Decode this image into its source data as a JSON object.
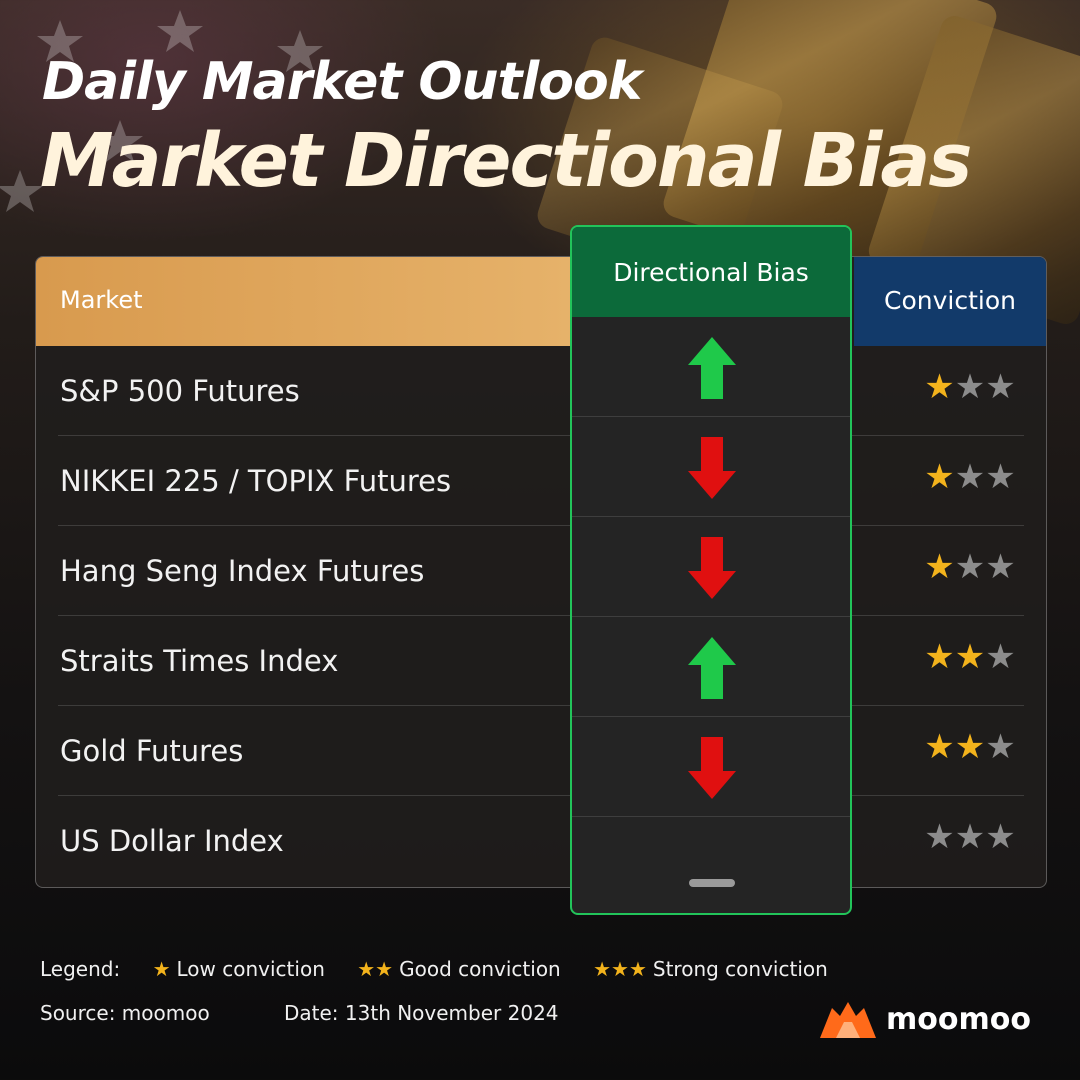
{
  "header": {
    "title_line1": "Daily Market Outlook",
    "title_line2": "Market Directional Bias"
  },
  "table": {
    "col_market": "Market",
    "col_bias": "Directional Bias",
    "col_conviction": "Conviction",
    "rows": [
      {
        "market": "S&P 500 Futures",
        "bias": "up",
        "stars": 1
      },
      {
        "market": "NIKKEI 225 / TOPIX Futures",
        "bias": "down",
        "stars": 1
      },
      {
        "market": "Hang Seng Index Futures",
        "bias": "down",
        "stars": 1
      },
      {
        "market": "Straits Times Index",
        "bias": "up",
        "stars": 2
      },
      {
        "market": "Gold Futures",
        "bias": "down",
        "stars": 2
      },
      {
        "market": "US Dollar Index",
        "bias": "neutral",
        "stars": 0
      }
    ],
    "max_stars": 3
  },
  "legend": {
    "label": "Legend:",
    "items": [
      {
        "stars": "★",
        "text": "Low conviction"
      },
      {
        "stars": "★★",
        "text": "Good conviction"
      },
      {
        "stars": "★★★",
        "text": "Strong conviction"
      }
    ]
  },
  "footer": {
    "source": "Source: moomoo",
    "date": "Date: 13th November 2024",
    "brand": "moomoo"
  },
  "colors": {
    "up": "#1fc94a",
    "down": "#e01010",
    "neutral": "#9a9a9a",
    "star_on": "#f3b31c",
    "star_off": "#8c8c8c",
    "brand_orange": "#ff6a1a"
  }
}
